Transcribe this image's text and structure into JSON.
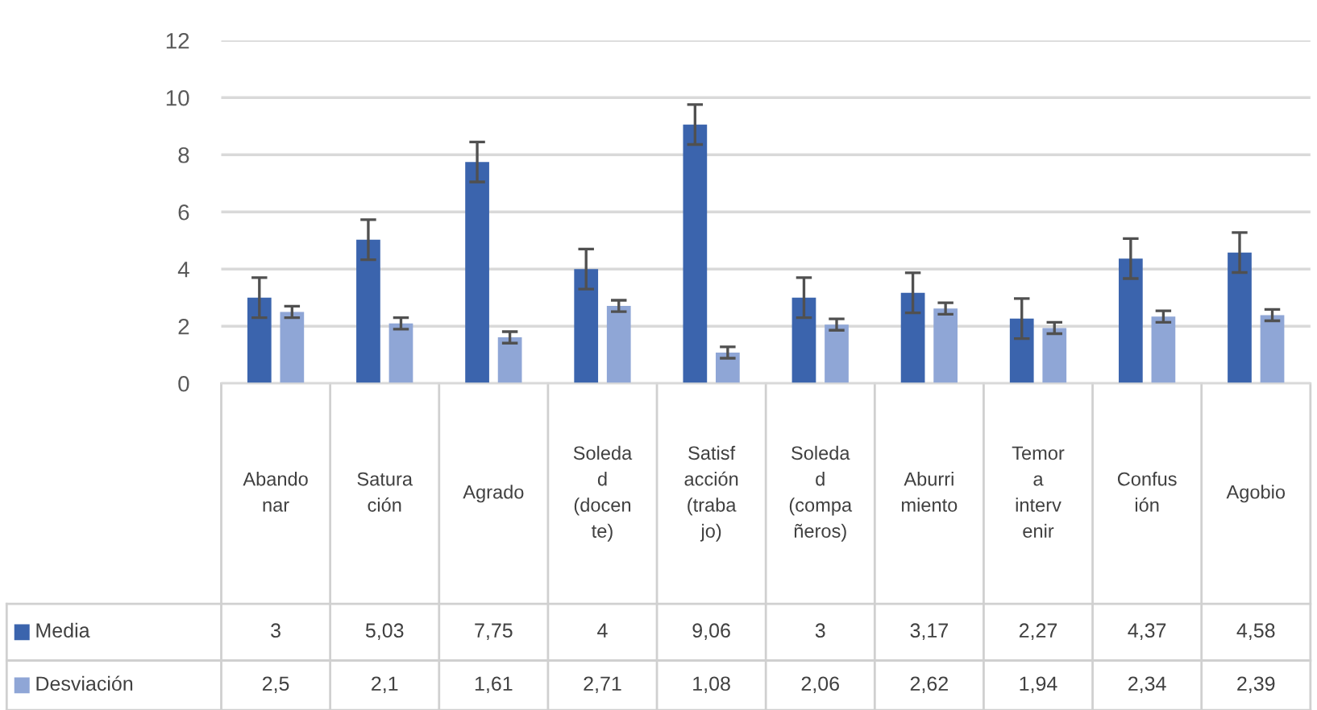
{
  "chart_data": {
    "type": "bar",
    "categories": [
      "Abandonar",
      "Saturación",
      "Agrado",
      "Soledad (docente)",
      "Satisfacción (trabajo)",
      "Soledad (compañeros)",
      "Aburrimiento",
      "Temor a intervenir",
      "Confusión",
      "Agobio"
    ],
    "series": [
      {
        "name": "Media",
        "color": "#3b64ad",
        "values": [
          3,
          5.03,
          7.75,
          4,
          9.06,
          3,
          3.17,
          2.27,
          4.37,
          4.58
        ],
        "errors": [
          0.7,
          0.7,
          0.7,
          0.7,
          0.7,
          0.7,
          0.7,
          0.7,
          0.7,
          0.7
        ],
        "value_labels": [
          "3",
          "5,03",
          "7,75",
          "4",
          "9,06",
          "3",
          "3,17",
          "2,27",
          "4,37",
          "4,58"
        ]
      },
      {
        "name": "Desviación",
        "color": "#8fa6d6",
        "values": [
          2.5,
          2.1,
          1.61,
          2.71,
          1.08,
          2.06,
          2.62,
          1.94,
          2.34,
          2.39
        ],
        "errors": [
          0.2,
          0.2,
          0.2,
          0.2,
          0.2,
          0.2,
          0.2,
          0.2,
          0.2,
          0.2
        ],
        "value_labels": [
          "2,5",
          "2,1",
          "1,61",
          "2,71",
          "1,08",
          "2,06",
          "2,62",
          "1,94",
          "2,34",
          "2,39"
        ]
      }
    ],
    "ylim": [
      0,
      12
    ],
    "yticks": [
      0,
      2,
      4,
      6,
      8,
      10,
      12
    ],
    "grid": "y",
    "legend": "bottom"
  }
}
